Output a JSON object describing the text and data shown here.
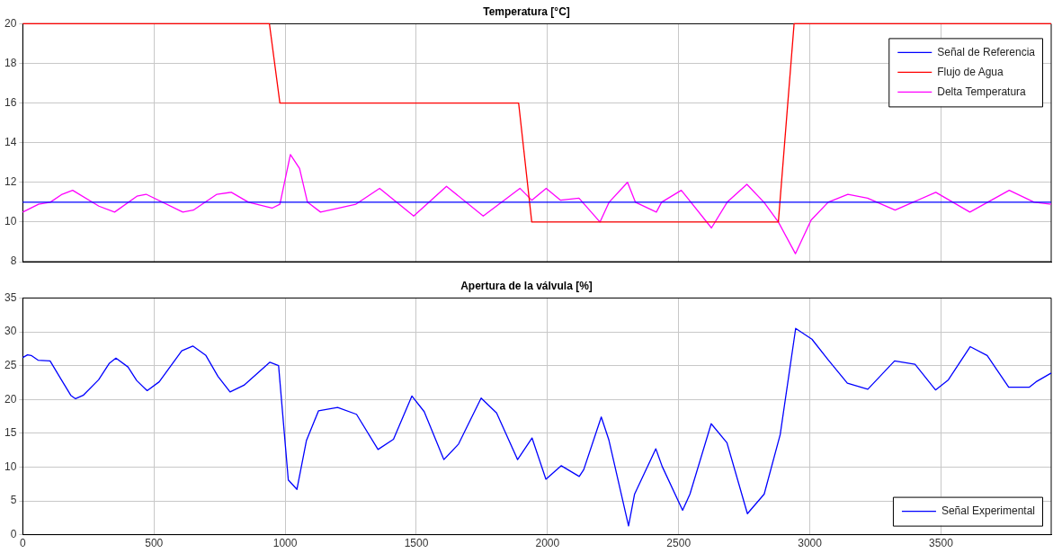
{
  "chart_data": [
    {
      "type": "line",
      "title": "Temperatura [°C]",
      "xlim": [
        0,
        3920
      ],
      "xticks": [
        0,
        500,
        1000,
        1500,
        2000,
        2500,
        3000,
        3500
      ],
      "ylim": [
        8,
        20
      ],
      "yticks": [
        8,
        10,
        12,
        14,
        16,
        18,
        20
      ],
      "grid": true,
      "legend": "top right",
      "tick_labels": "y",
      "series": [
        {
          "name": "Señal de Referencia",
          "color": "#0000ff",
          "x": [
            0,
            3920
          ],
          "values": [
            11,
            11
          ]
        },
        {
          "name": "Flujo de Agua",
          "color": "#ff0000",
          "x": [
            0,
            940,
            980,
            1890,
            1940,
            2880,
            2940,
            3920
          ],
          "values": [
            20,
            20,
            16,
            16,
            10,
            10,
            20,
            20
          ]
        },
        {
          "name": "Delta Temperatura",
          "color": "#ff00ff",
          "x": [
            0,
            60,
            105,
            150,
            190,
            290,
            350,
            435,
            470,
            610,
            650,
            740,
            795,
            860,
            950,
            980,
            1020,
            1055,
            1085,
            1135,
            1270,
            1360,
            1490,
            1615,
            1755,
            1895,
            1940,
            1995,
            2050,
            2120,
            2200,
            2235,
            2305,
            2335,
            2415,
            2435,
            2510,
            2625,
            2685,
            2760,
            2825,
            2880,
            2945,
            3005,
            3070,
            3145,
            3220,
            3325,
            3480,
            3610,
            3760,
            3855,
            3920
          ],
          "values": [
            10.5,
            10.9,
            11.0,
            11.4,
            11.6,
            10.8,
            10.5,
            11.3,
            11.4,
            10.5,
            10.6,
            11.4,
            11.5,
            11.0,
            10.7,
            10.9,
            13.4,
            12.7,
            11.0,
            10.5,
            10.9,
            11.7,
            10.3,
            11.8,
            10.3,
            11.7,
            11.1,
            11.7,
            11.1,
            11.2,
            10.0,
            11.0,
            12.0,
            11.0,
            10.5,
            11.0,
            11.6,
            9.7,
            11.0,
            11.9,
            11.0,
            10.0,
            8.4,
            10.1,
            11.0,
            11.4,
            11.2,
            10.6,
            11.5,
            10.5,
            11.6,
            11.0,
            10.9
          ]
        }
      ]
    },
    {
      "type": "line",
      "title": "Apertura de la válvula [%]",
      "xlim": [
        0,
        3920
      ],
      "xticks": [
        0,
        500,
        1000,
        1500,
        2000,
        2500,
        3000,
        3500
      ],
      "ylim": [
        0,
        35
      ],
      "yticks": [
        0,
        5,
        10,
        15,
        20,
        25,
        30,
        35
      ],
      "grid": true,
      "legend": "bottom right",
      "series": [
        {
          "name": "Señal Experimental",
          "color": "#0000ff",
          "x": [
            0,
            18,
            32,
            58,
            104,
            144,
            183,
            201,
            230,
            289,
            329,
            355,
            401,
            434,
            474,
            520,
            606,
            648,
            698,
            744,
            790,
            843,
            942,
            975,
            1012,
            1045,
            1081,
            1127,
            1200,
            1272,
            1354,
            1413,
            1483,
            1530,
            1605,
            1661,
            1747,
            1806,
            1886,
            1941,
            1994,
            2052,
            2121,
            2138,
            2205,
            2234,
            2309,
            2332,
            2413,
            2437,
            2515,
            2543,
            2624,
            2684,
            2762,
            2826,
            2887,
            2946,
            3008,
            3069,
            3143,
            3221,
            3323,
            3401,
            3479,
            3528,
            3611,
            3676,
            3758,
            3836,
            3862,
            3920
          ],
          "values": [
            26.2,
            26.6,
            26.5,
            25.8,
            25.7,
            23.1,
            20.6,
            20.1,
            20.6,
            22.9,
            25.3,
            26.1,
            24.8,
            22.8,
            21.3,
            22.6,
            27.2,
            27.9,
            26.5,
            23.4,
            21.1,
            22.1,
            25.5,
            25.0,
            8.1,
            6.7,
            13.9,
            18.3,
            18.8,
            17.8,
            12.6,
            14.1,
            20.5,
            18.2,
            11.1,
            13.4,
            20.2,
            18.0,
            11.1,
            14.3,
            8.2,
            10.2,
            8.6,
            9.6,
            17.4,
            14.0,
            1.3,
            6.0,
            12.7,
            10.1,
            3.6,
            6.0,
            16.4,
            13.6,
            3.1,
            6.0,
            14.8,
            30.5,
            28.9,
            25.9,
            22.4,
            21.5,
            25.7,
            25.2,
            21.4,
            22.9,
            27.8,
            26.5,
            21.8,
            21.8,
            22.6,
            23.9
          ]
        }
      ]
    }
  ]
}
